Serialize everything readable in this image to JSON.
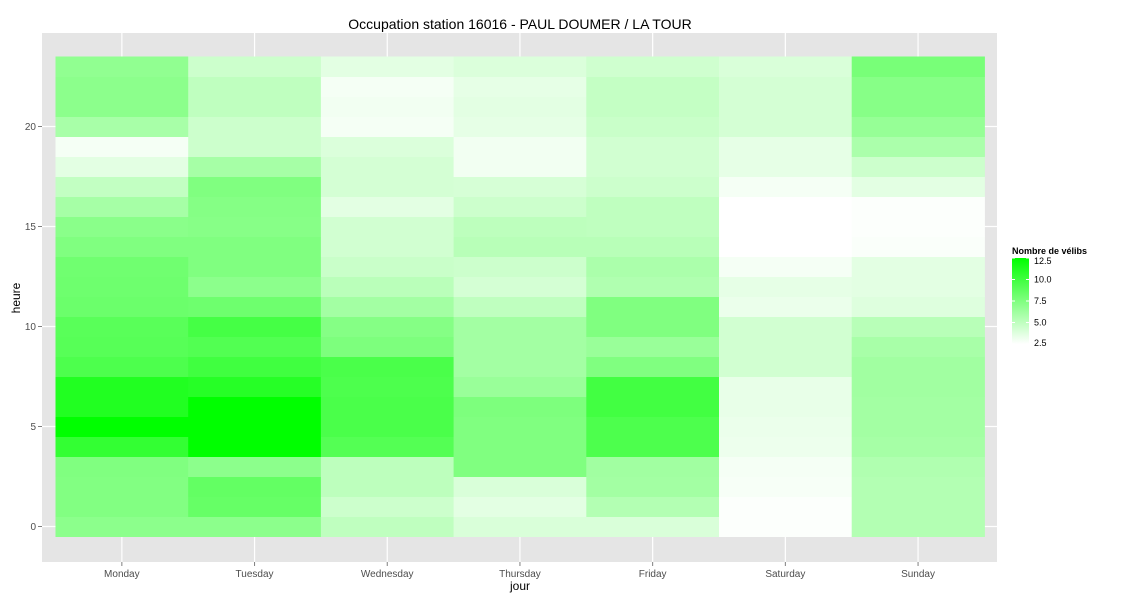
{
  "chart_data": {
    "type": "heatmap",
    "title": "Occupation station 16016 - PAUL DOUMER / LA TOUR",
    "xlabel": "jour",
    "ylabel": "heure",
    "x_categories": [
      "Monday",
      "Tuesday",
      "Wednesday",
      "Thursday",
      "Friday",
      "Saturday",
      "Sunday"
    ],
    "y_range": [
      -0.5,
      23.5
    ],
    "y_ticks": [
      0,
      5,
      10,
      15,
      20
    ],
    "grid": true,
    "colors": {
      "low": "#ffffff",
      "high": "#00ff00",
      "panel": "#e5e5e5",
      "grid": "#ffffff"
    },
    "legend": {
      "title": "Nombre de vélibs",
      "position": "right",
      "min": 2.5,
      "max": 12.5,
      "breaks": [
        2.5,
        5.0,
        7.5,
        10.0,
        12.5
      ],
      "labels": [
        "2.5",
        "5.0",
        "7.5",
        "10.0",
        "12.5"
      ]
    },
    "values": [
      [
        7.0,
        7.0,
        5.0,
        4.0,
        4.0,
        2.6,
        5.5
      ],
      [
        7.4,
        8.5,
        4.5,
        3.6,
        5.5,
        2.6,
        5.5
      ],
      [
        7.4,
        8.6,
        5.1,
        4.0,
        6.1,
        2.8,
        5.5
      ],
      [
        7.5,
        7.0,
        5.1,
        7.5,
        6.2,
        2.9,
        5.6
      ],
      [
        10.5,
        12.8,
        9.2,
        7.5,
        9.5,
        3.2,
        6.0
      ],
      [
        12.6,
        13.0,
        9.6,
        7.5,
        9.5,
        3.3,
        6.1
      ],
      [
        11.2,
        12.5,
        9.6,
        7.6,
        9.9,
        3.4,
        6.1
      ],
      [
        11.2,
        11.0,
        9.5,
        6.5,
        9.9,
        3.4,
        6.2
      ],
      [
        9.5,
        10.0,
        9.6,
        6.1,
        7.5,
        4.3,
        6.2
      ],
      [
        9.1,
        9.3,
        7.6,
        6.1,
        6.5,
        4.3,
        5.9
      ],
      [
        9.0,
        9.8,
        7.3,
        6.1,
        7.5,
        4.3,
        5.3
      ],
      [
        8.3,
        8.2,
        6.1,
        5.0,
        7.5,
        3.3,
        3.8
      ],
      [
        8.2,
        7.0,
        5.2,
        4.2,
        5.6,
        3.5,
        3.6
      ],
      [
        8.1,
        7.5,
        4.6,
        4.5,
        5.8,
        2.9,
        3.6
      ],
      [
        7.5,
        7.5,
        4.3,
        5.3,
        5.3,
        2.5,
        2.7
      ],
      [
        7.1,
        7.2,
        4.3,
        5.1,
        5.0,
        2.5,
        2.6
      ],
      [
        6.0,
        7.3,
        3.6,
        4.5,
        5.0,
        2.5,
        2.6
      ],
      [
        4.9,
        7.5,
        4.2,
        4.1,
        4.5,
        2.9,
        3.6
      ],
      [
        3.6,
        6.0,
        4.2,
        3.0,
        4.3,
        3.5,
        4.5
      ],
      [
        2.9,
        4.5,
        3.9,
        3.0,
        4.3,
        3.5,
        5.8
      ],
      [
        5.9,
        4.5,
        2.9,
        3.5,
        4.6,
        4.2,
        6.6
      ],
      [
        7.0,
        5.0,
        3.0,
        3.6,
        4.8,
        4.2,
        7.2
      ],
      [
        7.0,
        5.0,
        2.9,
        3.5,
        4.8,
        4.2,
        7.2
      ],
      [
        6.8,
        4.5,
        3.6,
        3.9,
        4.4,
        4.0,
        7.8
      ]
    ]
  }
}
